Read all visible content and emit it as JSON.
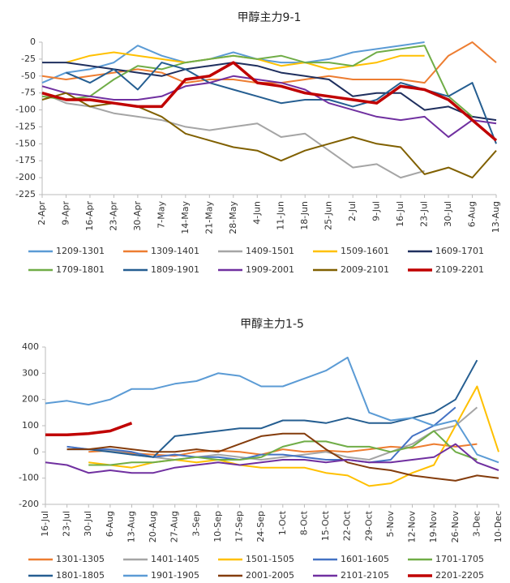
{
  "chart_data": [
    {
      "type": "line",
      "title": "甲醇主力9-1",
      "categories": [
        "2-Apr",
        "9-Apr",
        "16-Apr",
        "23-Apr",
        "30-Apr",
        "7-May",
        "14-May",
        "21-May",
        "28-May",
        "4-Jun",
        "11-Jun",
        "18-Jun",
        "25-Jun",
        "2-Jul",
        "9-Jul",
        "16-Jul",
        "23-Jul",
        "30-Jul",
        "6-Aug",
        "13-Aug"
      ],
      "ylim": [
        -225,
        0
      ],
      "yticks": [
        -225,
        -200,
        -175,
        -150,
        -125,
        -100,
        -75,
        -50,
        -25,
        0
      ],
      "grid": false,
      "legend": "bottom",
      "series": [
        {
          "name": "1209-1301",
          "color": "#5b9bd5",
          "values": [
            -60,
            -45,
            -40,
            -30,
            -5,
            -20,
            -30,
            -25,
            -15,
            -25,
            -30,
            -30,
            -25,
            -15,
            -10,
            -5,
            0,
            null,
            null,
            null
          ]
        },
        {
          "name": "1309-1401",
          "color": "#ed7d31",
          "values": [
            -50,
            -55,
            -50,
            -45,
            -40,
            -45,
            -60,
            -55,
            -55,
            -60,
            -60,
            -55,
            -50,
            -55,
            -55,
            -55,
            -60,
            -20,
            0,
            -30
          ]
        },
        {
          "name": "1409-1501",
          "color": "#a5a5a5",
          "values": [
            -75,
            -90,
            -95,
            -105,
            -110,
            -115,
            -125,
            -130,
            -125,
            -120,
            -140,
            -135,
            -160,
            -185,
            -180,
            -200,
            -190,
            null,
            null,
            null
          ]
        },
        {
          "name": "1509-1601",
          "color": "#ffc000",
          "values": [
            null,
            -30,
            -20,
            -15,
            -20,
            -25,
            -30,
            -25,
            -20,
            -25,
            -35,
            -30,
            -40,
            -35,
            -30,
            -20,
            -20,
            null,
            null,
            null
          ]
        },
        {
          "name": "1609-1701",
          "color": "#1f2f5e",
          "values": [
            -30,
            -30,
            -35,
            -40,
            -45,
            -50,
            -40,
            -35,
            -30,
            -35,
            -45,
            -50,
            -55,
            -80,
            -75,
            -75,
            -100,
            -95,
            -110,
            -115
          ]
        },
        {
          "name": "1709-1801",
          "color": "#70ad47",
          "values": [
            -80,
            -85,
            -80,
            -55,
            -35,
            -40,
            -30,
            -25,
            -20,
            -25,
            -20,
            -30,
            -30,
            -35,
            -15,
            -10,
            -5,
            -80,
            -110,
            null
          ]
        },
        {
          "name": "1809-1901",
          "color": "#255e91",
          "values": [
            null,
            -45,
            -60,
            -40,
            -70,
            -30,
            -40,
            -60,
            -70,
            -80,
            -90,
            -85,
            -85,
            -95,
            -85,
            -60,
            -70,
            -80,
            -60,
            -150
          ]
        },
        {
          "name": "1909-2001",
          "color": "#7030a0",
          "values": [
            -65,
            -75,
            -80,
            -85,
            -85,
            -80,
            -65,
            -60,
            -50,
            -55,
            -60,
            -70,
            -90,
            -100,
            -110,
            -115,
            -110,
            -140,
            -115,
            -120
          ]
        },
        {
          "name": "2009-2101",
          "color": "#806000",
          "values": [
            -85,
            -75,
            -95,
            -90,
            -95,
            -110,
            -135,
            -145,
            -155,
            -160,
            -175,
            -160,
            -150,
            -140,
            -150,
            -155,
            -195,
            -185,
            -200,
            -160
          ]
        },
        {
          "name": "2109-2201",
          "color": "#c00000",
          "linewidth": 3.5,
          "values": [
            -75,
            -85,
            -85,
            -90,
            -95,
            -95,
            -55,
            -50,
            -30,
            -60,
            -65,
            -75,
            -80,
            -85,
            -90,
            -65,
            -70,
            -85,
            -115,
            -145
          ]
        }
      ]
    },
    {
      "type": "line",
      "title": "甲醇主力1-5",
      "categories": [
        "16-Jul",
        "23-Jul",
        "30-Jul",
        "6-Aug",
        "13-Aug",
        "20-Aug",
        "27-Aug",
        "3-Sep",
        "10-Sep",
        "17-Sep",
        "24-Sep",
        "1-Oct",
        "8-Oct",
        "15-Oct",
        "22-Oct",
        "29-Oct",
        "5-Nov",
        "12-Nov",
        "19-Nov",
        "26-Nov",
        "3-Dec",
        "10-Dec"
      ],
      "ylim": [
        -200,
        400
      ],
      "yticks": [
        -200,
        -100,
        0,
        100,
        200,
        300,
        400
      ],
      "grid": false,
      "legend": "bottom",
      "series": [
        {
          "name": "1301-1305",
          "color": "#ed7d31",
          "values": [
            null,
            null,
            0,
            5,
            -5,
            -10,
            -15,
            0,
            5,
            0,
            -10,
            10,
            0,
            5,
            0,
            10,
            20,
            15,
            30,
            20,
            30,
            null
          ]
        },
        {
          "name": "1401-1405",
          "color": "#a5a5a5",
          "values": [
            null,
            20,
            10,
            5,
            -10,
            -20,
            -30,
            -20,
            -10,
            -20,
            -30,
            -20,
            -10,
            0,
            -20,
            -30,
            0,
            30,
            80,
            100,
            170,
            null
          ]
        },
        {
          "name": "1501-1505",
          "color": "#ffc000",
          "values": [
            null,
            null,
            -40,
            -50,
            -60,
            -40,
            -30,
            -40,
            -30,
            -50,
            -60,
            -60,
            -60,
            -80,
            -90,
            -130,
            -120,
            -80,
            -50,
            100,
            250,
            0
          ]
        },
        {
          "name": "1601-1605",
          "color": "#4472c4",
          "values": [
            null,
            20,
            10,
            10,
            0,
            -20,
            -10,
            -20,
            -20,
            -30,
            -10,
            -10,
            -20,
            -30,
            -30,
            -40,
            -30,
            60,
            100,
            170,
            null,
            null
          ]
        },
        {
          "name": "1701-1705",
          "color": "#70ad47",
          "values": [
            null,
            null,
            -50,
            -50,
            -40,
            -40,
            -30,
            -20,
            -30,
            -30,
            -20,
            20,
            40,
            40,
            20,
            20,
            0,
            20,
            80,
            0,
            -30,
            null
          ]
        },
        {
          "name": "1801-1805",
          "color": "#255e91",
          "values": [
            null,
            10,
            10,
            0,
            -10,
            -20,
            60,
            70,
            80,
            90,
            90,
            120,
            120,
            110,
            130,
            110,
            110,
            130,
            150,
            200,
            350,
            null
          ]
        },
        {
          "name": "1901-1905",
          "color": "#5b9bd5",
          "values": [
            185,
            195,
            180,
            200,
            240,
            240,
            260,
            270,
            300,
            290,
            250,
            250,
            280,
            310,
            360,
            150,
            120,
            130,
            100,
            120,
            -10,
            -40
          ]
        },
        {
          "name": "2001-2005",
          "color": "#843c0c",
          "values": [
            null,
            10,
            10,
            20,
            10,
            0,
            0,
            10,
            0,
            30,
            60,
            70,
            70,
            10,
            -40,
            -60,
            -70,
            -90,
            -100,
            -110,
            -90,
            -100
          ]
        },
        {
          "name": "2101-2105",
          "color": "#7030a0",
          "values": [
            -40,
            -50,
            -80,
            -70,
            -80,
            -80,
            -60,
            -50,
            -40,
            -50,
            -40,
            -30,
            -30,
            -40,
            -30,
            -40,
            -40,
            -30,
            -20,
            30,
            -40,
            -70
          ]
        },
        {
          "name": "2201-2205",
          "color": "#c00000",
          "linewidth": 3.5,
          "values": [
            65,
            65,
            70,
            80,
            110,
            null,
            null,
            null,
            null,
            null,
            null,
            null,
            null,
            null,
            null,
            null,
            null,
            null,
            null,
            null,
            null,
            null
          ]
        }
      ]
    }
  ]
}
